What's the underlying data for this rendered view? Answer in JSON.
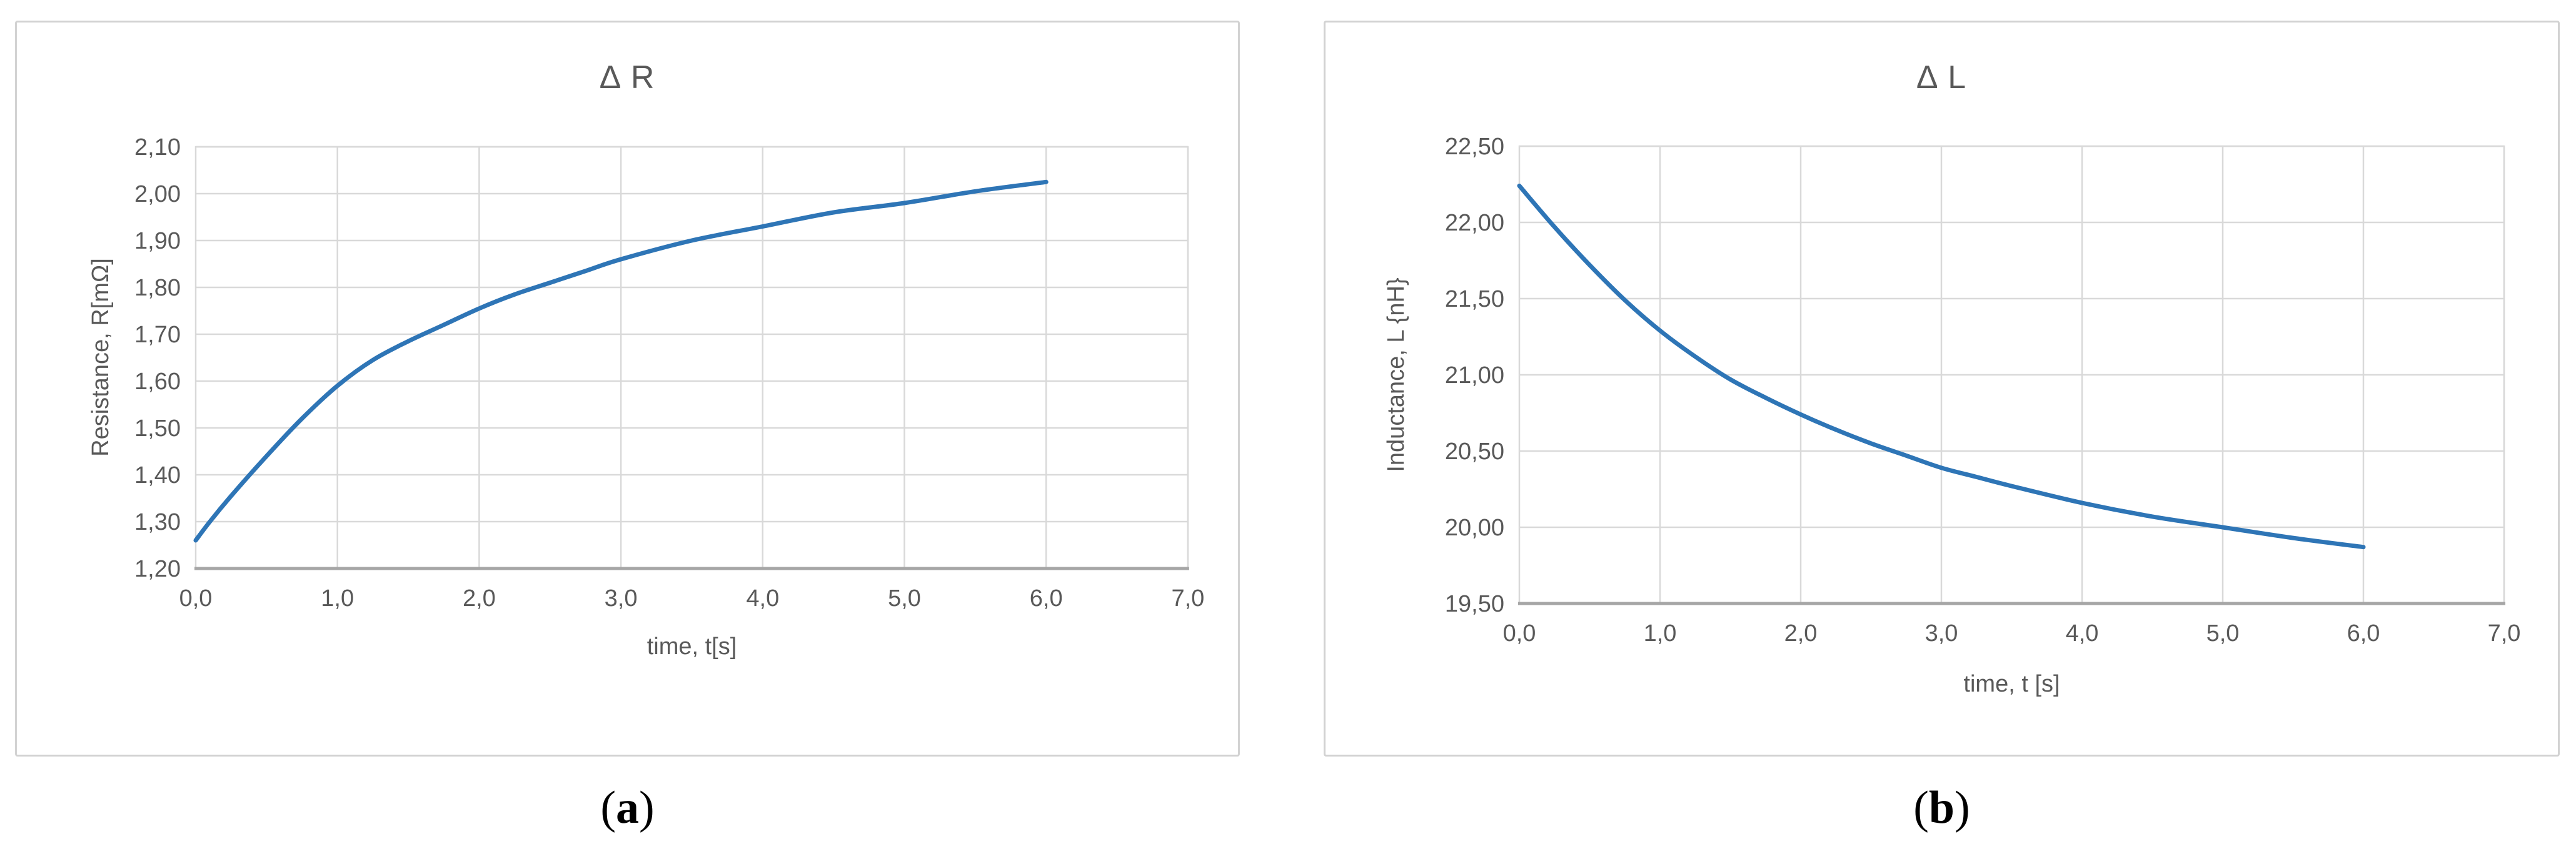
{
  "figure": {
    "captions": {
      "a": {
        "open": "(",
        "letter": "a",
        "close": ")"
      },
      "b": {
        "open": "(",
        "letter": "b",
        "close": ")"
      }
    }
  },
  "colors": {
    "line": "#2E75B6",
    "grid": "#D9D9D9",
    "plot_border": "#D9D9D9",
    "axis_line": "#A6A6A6",
    "tick_text": "#595959",
    "title_text": "#595959"
  },
  "chart_data": [
    {
      "id": "delta-R",
      "type": "line",
      "title": "Δ R",
      "xlabel": "time, t[s]",
      "ylabel": "Resistance, R[mΩ]",
      "xlim": [
        0,
        7
      ],
      "ylim": [
        1.2,
        2.1
      ],
      "grid": true,
      "legend": "none",
      "x_ticks": [
        {
          "v": 0,
          "label": "0,0"
        },
        {
          "v": 1,
          "label": "1,0"
        },
        {
          "v": 2,
          "label": "2,0"
        },
        {
          "v": 3,
          "label": "3,0"
        },
        {
          "v": 4,
          "label": "4,0"
        },
        {
          "v": 5,
          "label": "5,0"
        },
        {
          "v": 6,
          "label": "6,0"
        },
        {
          "v": 7,
          "label": "7,0"
        }
      ],
      "y_ticks": [
        {
          "v": 1.2,
          "label": "1,20"
        },
        {
          "v": 1.3,
          "label": "1,30"
        },
        {
          "v": 1.4,
          "label": "1,40"
        },
        {
          "v": 1.5,
          "label": "1,50"
        },
        {
          "v": 1.6,
          "label": "1,60"
        },
        {
          "v": 1.7,
          "label": "1,70"
        },
        {
          "v": 1.8,
          "label": "1,80"
        },
        {
          "v": 1.9,
          "label": "1,90"
        },
        {
          "v": 2.0,
          "label": "2,00"
        },
        {
          "v": 2.1,
          "label": "2,10"
        }
      ],
      "series": [
        {
          "name": "resistance-curve",
          "color": "#2E75B6",
          "points": [
            [
              0,
              1.26
            ],
            [
              0.1,
              1.3
            ],
            [
              0.25,
              1.355
            ],
            [
              0.5,
              1.44
            ],
            [
              0.75,
              1.52
            ],
            [
              1.0,
              1.59
            ],
            [
              1.25,
              1.645
            ],
            [
              1.5,
              1.685
            ],
            [
              1.75,
              1.72
            ],
            [
              2.0,
              1.755
            ],
            [
              2.25,
              1.785
            ],
            [
              2.5,
              1.81
            ],
            [
              2.75,
              1.835
            ],
            [
              3.0,
              1.86
            ],
            [
              3.5,
              1.9
            ],
            [
              4.0,
              1.93
            ],
            [
              4.5,
              1.96
            ],
            [
              5.0,
              1.98
            ],
            [
              5.5,
              2.005
            ],
            [
              6.0,
              2.025
            ]
          ]
        }
      ]
    },
    {
      "id": "delta-L",
      "type": "line",
      "title": "Δ L",
      "xlabel": "time, t [s]",
      "ylabel": "Inductance, L {nH}",
      "xlim": [
        0,
        7
      ],
      "ylim": [
        19.5,
        22.5
      ],
      "grid": true,
      "legend": "none",
      "x_ticks": [
        {
          "v": 0,
          "label": "0,0"
        },
        {
          "v": 1,
          "label": "1,0"
        },
        {
          "v": 2,
          "label": "2,0"
        },
        {
          "v": 3,
          "label": "3,0"
        },
        {
          "v": 4,
          "label": "4,0"
        },
        {
          "v": 5,
          "label": "5,0"
        },
        {
          "v": 6,
          "label": "6,0"
        },
        {
          "v": 7,
          "label": "7,0"
        }
      ],
      "y_ticks": [
        {
          "v": 19.5,
          "label": "19,50"
        },
        {
          "v": 20.0,
          "label": "20,00"
        },
        {
          "v": 20.5,
          "label": "20,50"
        },
        {
          "v": 21.0,
          "label": "21,00"
        },
        {
          "v": 21.5,
          "label": "21,50"
        },
        {
          "v": 22.0,
          "label": "22,00"
        },
        {
          "v": 22.5,
          "label": "22,50"
        }
      ],
      "series": [
        {
          "name": "inductance-curve",
          "color": "#2E75B6",
          "points": [
            [
              0,
              22.24
            ],
            [
              0.25,
              21.97
            ],
            [
              0.5,
              21.72
            ],
            [
              0.75,
              21.49
            ],
            [
              1.0,
              21.29
            ],
            [
              1.25,
              21.12
            ],
            [
              1.5,
              20.97
            ],
            [
              1.75,
              20.85
            ],
            [
              2.0,
              20.74
            ],
            [
              2.25,
              20.64
            ],
            [
              2.5,
              20.55
            ],
            [
              2.75,
              20.47
            ],
            [
              3.0,
              20.39
            ],
            [
              3.25,
              20.33
            ],
            [
              3.5,
              20.27
            ],
            [
              4.0,
              20.16
            ],
            [
              4.5,
              20.07
            ],
            [
              5.0,
              20.0
            ],
            [
              5.5,
              19.93
            ],
            [
              6.0,
              19.87
            ]
          ]
        }
      ]
    }
  ]
}
